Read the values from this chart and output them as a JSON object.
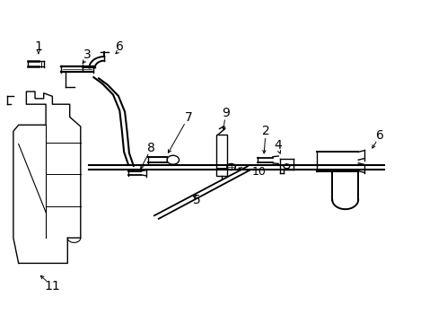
{
  "bg_color": "#ffffff",
  "line_color": "#000000",
  "lw": 1.0,
  "font_size": 10,
  "labels": {
    "1": [
      0.085,
      0.855,
      0.093,
      0.828
    ],
    "3": [
      0.2,
      0.79,
      0.195,
      0.762
    ],
    "6t": [
      0.275,
      0.855,
      0.268,
      0.818
    ],
    "11": [
      0.115,
      0.115,
      0.098,
      0.148
    ],
    "7": [
      0.435,
      0.63,
      0.428,
      0.6
    ],
    "9": [
      0.515,
      0.645,
      0.515,
      0.618
    ],
    "8": [
      0.355,
      0.55,
      0.375,
      0.53
    ],
    "2": [
      0.605,
      0.59,
      0.598,
      0.563
    ],
    "4": [
      0.625,
      0.545,
      0.632,
      0.518
    ],
    "6r": [
      0.87,
      0.58,
      0.855,
      0.558
    ],
    "10": [
      0.565,
      0.482,
      0.537,
      0.49
    ],
    "5": [
      0.468,
      0.39,
      0.453,
      0.415
    ]
  }
}
